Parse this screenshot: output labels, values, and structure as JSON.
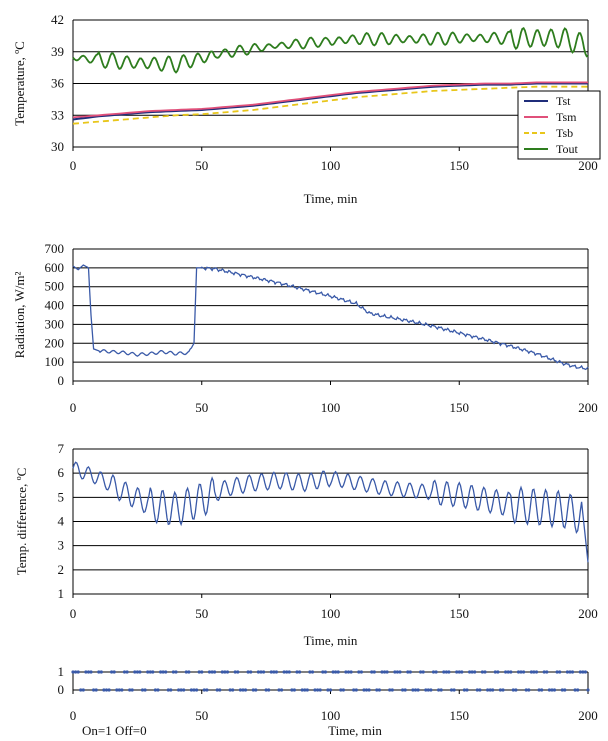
{
  "chart_data": [
    {
      "type": "line",
      "ylabel": "Temperature, ºC",
      "xlabel": "Time, min",
      "xlim": [
        0,
        200
      ],
      "ylim": [
        30,
        42
      ],
      "xticks": [
        0,
        50,
        100,
        150,
        200
      ],
      "yticks": [
        30,
        33,
        36,
        39,
        42
      ],
      "grid": "horizontal",
      "legend_position": "right",
      "series": [
        {
          "name": "Tst",
          "color": "#1f2d7a",
          "style": "solid",
          "x": [
            0,
            10,
            20,
            30,
            40,
            50,
            60,
            70,
            80,
            90,
            100,
            110,
            120,
            130,
            140,
            150,
            160,
            170,
            180,
            190,
            200
          ],
          "y": [
            32.6,
            32.9,
            33.1,
            33.3,
            33.4,
            33.5,
            33.7,
            33.9,
            34.2,
            34.5,
            34.8,
            35.1,
            35.3,
            35.5,
            35.7,
            35.8,
            35.9,
            35.9,
            36.0,
            36.0,
            36.0
          ]
        },
        {
          "name": "Tsm",
          "color": "#e0507a",
          "style": "solid",
          "x": [
            0,
            10,
            20,
            30,
            40,
            50,
            60,
            70,
            80,
            90,
            100,
            110,
            120,
            130,
            140,
            150,
            160,
            170,
            180,
            190,
            200
          ],
          "y": [
            32.8,
            33.0,
            33.2,
            33.4,
            33.5,
            33.6,
            33.8,
            34.0,
            34.3,
            34.6,
            34.9,
            35.2,
            35.4,
            35.6,
            35.8,
            35.9,
            36.0,
            36.0,
            36.1,
            36.1,
            36.1
          ]
        },
        {
          "name": "Tsb",
          "color": "#e8c61a",
          "style": "dashed",
          "x": [
            0,
            10,
            20,
            30,
            40,
            50,
            60,
            70,
            80,
            90,
            100,
            110,
            120,
            130,
            140,
            150,
            160,
            170,
            180,
            190,
            200
          ],
          "y": [
            32.2,
            32.4,
            32.6,
            32.8,
            33.0,
            33.1,
            33.3,
            33.5,
            33.8,
            34.1,
            34.4,
            34.7,
            34.9,
            35.1,
            35.3,
            35.4,
            35.5,
            35.6,
            35.7,
            35.7,
            35.7
          ]
        },
        {
          "name": "Tout",
          "color": "#2e7d1e",
          "style": "solid",
          "oscillating": true,
          "x": [
            0,
            10,
            20,
            30,
            40,
            50,
            60,
            70,
            80,
            90,
            100,
            110,
            120,
            130,
            140,
            150,
            160,
            170,
            180,
            190,
            200
          ],
          "y": [
            38.4,
            38.3,
            38.0,
            37.9,
            37.8,
            38.4,
            38.9,
            39.3,
            39.6,
            39.8,
            40.0,
            40.2,
            40.2,
            40.2,
            40.2,
            40.3,
            40.3,
            40.3,
            40.3,
            40.3,
            39.5
          ]
        }
      ]
    },
    {
      "type": "line",
      "ylabel": "Radiation, W/m²",
      "xlabel": "",
      "xlim": [
        0,
        200
      ],
      "ylim": [
        0,
        700
      ],
      "xticks": [
        0,
        50,
        100,
        150,
        200
      ],
      "yticks": [
        0,
        100,
        200,
        300,
        400,
        500,
        600,
        700
      ],
      "grid": "horizontal",
      "series": [
        {
          "color": "#3a5aa8",
          "x": [
            0,
            2,
            4,
            6,
            7,
            8,
            10,
            15,
            20,
            25,
            30,
            35,
            40,
            45,
            47,
            48,
            50,
            55,
            60,
            70,
            80,
            90,
            100,
            110,
            115,
            120,
            130,
            140,
            150,
            160,
            170,
            180,
            185,
            190,
            195,
            200
          ],
          "y": [
            610,
            590,
            615,
            600,
            350,
            170,
            160,
            155,
            150,
            140,
            145,
            155,
            145,
            150,
            200,
            600,
            600,
            595,
            580,
            550,
            520,
            485,
            450,
            410,
            360,
            345,
            320,
            290,
            255,
            220,
            185,
            145,
            120,
            95,
            75,
            65
          ]
        }
      ]
    },
    {
      "type": "line",
      "ylabel": "Temp. difference, ºC",
      "xlabel": "Time, min",
      "xlim": [
        0,
        200
      ],
      "ylim": [
        1,
        7
      ],
      "xticks": [
        0,
        50,
        100,
        150,
        200
      ],
      "yticks": [
        1,
        2,
        3,
        4,
        5,
        6,
        7
      ],
      "grid": "horizontal",
      "series": [
        {
          "color": "#3a5aa8",
          "oscillating": true,
          "x": [
            0,
            10,
            20,
            30,
            40,
            50,
            60,
            70,
            80,
            90,
            100,
            110,
            120,
            130,
            140,
            150,
            160,
            170,
            180,
            190,
            198,
            200
          ],
          "y": [
            6.2,
            5.8,
            5.2,
            4.7,
            4.5,
            4.9,
            5.4,
            5.6,
            5.7,
            5.6,
            5.8,
            5.6,
            5.4,
            5.3,
            5.2,
            5.1,
            4.9,
            4.7,
            4.6,
            4.5,
            4.2,
            2.4
          ]
        }
      ]
    },
    {
      "type": "scatter",
      "xlabel": "Time, min",
      "note": "On=1 Off=0",
      "xlim": [
        0,
        200
      ],
      "ylim": [
        0,
        1
      ],
      "xticks": [
        0,
        50,
        100,
        150,
        200
      ],
      "yticks": [
        0,
        1
      ],
      "grid": "horizontal",
      "series": [
        {
          "color": "#3a5aa8",
          "values": "alternating on/off states (1 and 0) sampled at ~1 min intervals"
        }
      ]
    }
  ]
}
